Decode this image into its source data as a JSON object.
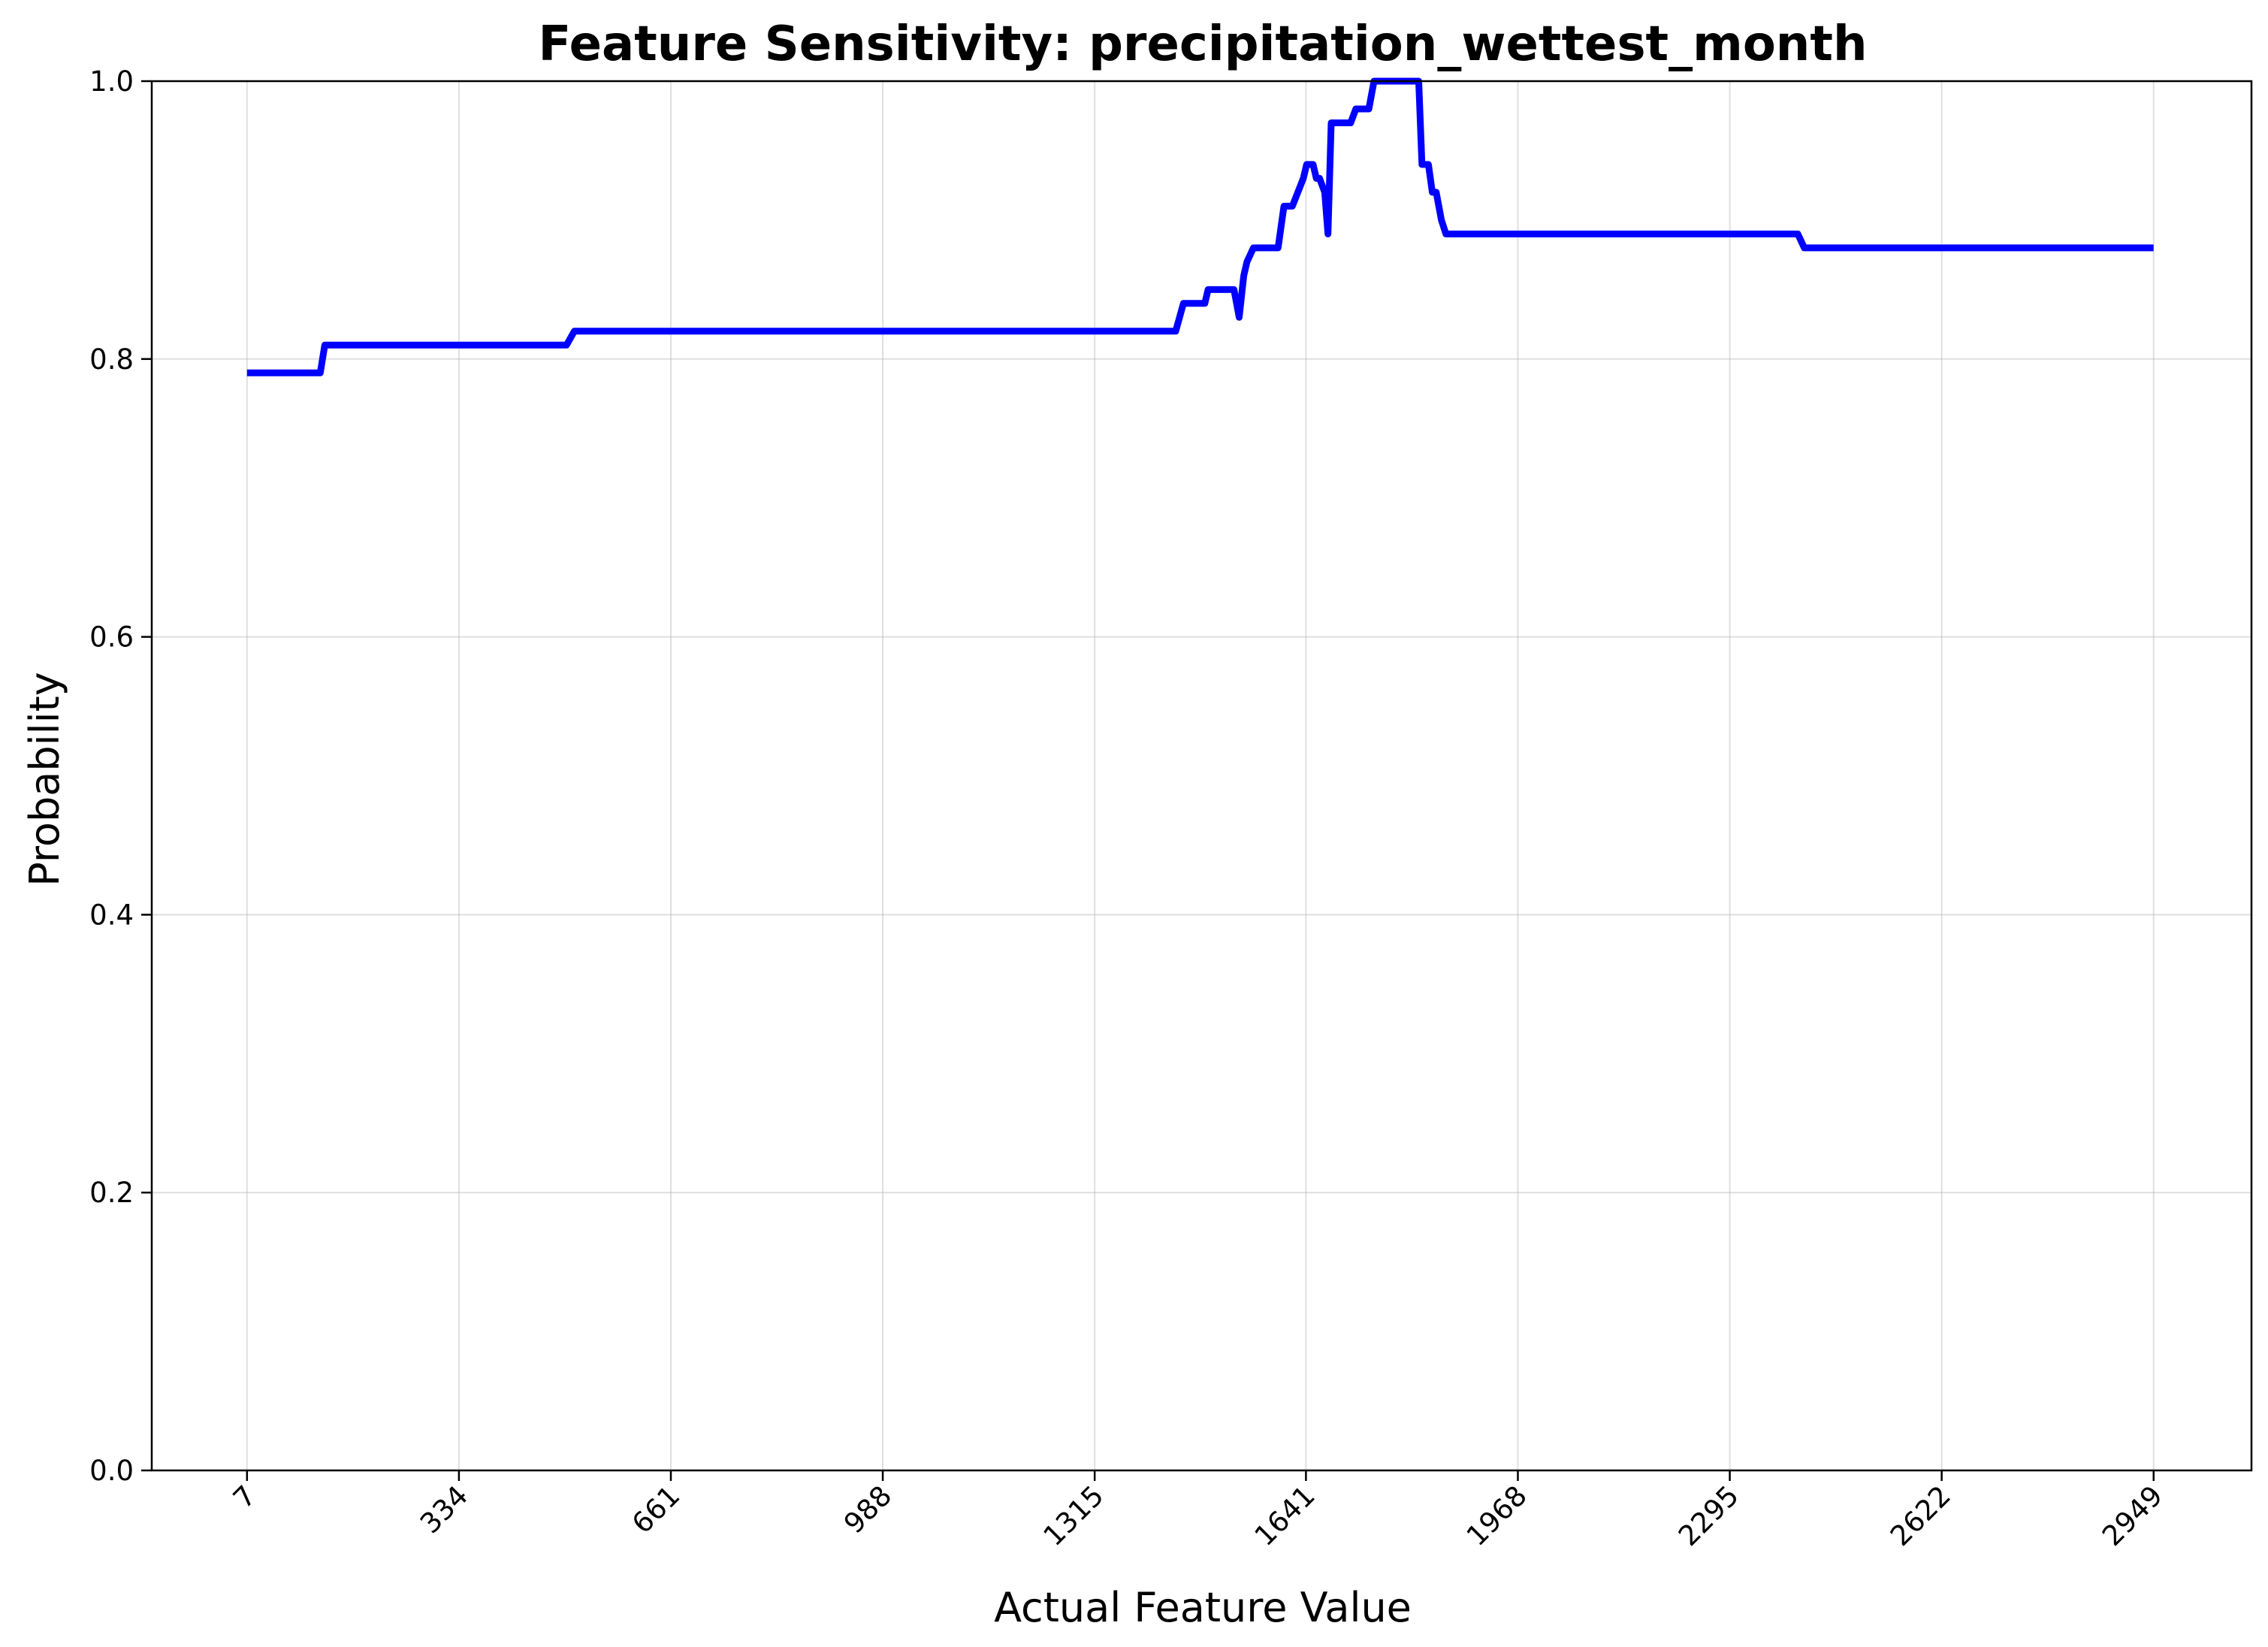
{
  "chart_data": {
    "type": "line",
    "title": "Feature Sensitivity: precipitation_wettest_month",
    "xlabel": "Actual Feature Value",
    "ylabel": "Probability",
    "ylim": [
      0,
      1.0
    ],
    "xlim": [
      -140,
      3100
    ],
    "grid": true,
    "x_ticks": [
      {
        "value": 7,
        "label": "7"
      },
      {
        "value": 334,
        "label": "334"
      },
      {
        "value": 661,
        "label": "661"
      },
      {
        "value": 988,
        "label": "988"
      },
      {
        "value": 1315,
        "label": "1315"
      },
      {
        "value": 1641,
        "label": "1641"
      },
      {
        "value": 1968,
        "label": "1968"
      },
      {
        "value": 2295,
        "label": "2295"
      },
      {
        "value": 2622,
        "label": "2622"
      },
      {
        "value": 2949,
        "label": "2949"
      }
    ],
    "y_ticks": [
      {
        "value": 0.0,
        "label": "0.0"
      },
      {
        "value": 0.2,
        "label": "0.2"
      },
      {
        "value": 0.4,
        "label": "0.4"
      },
      {
        "value": 0.6,
        "label": "0.6"
      },
      {
        "value": 0.8,
        "label": "0.8"
      },
      {
        "value": 1.0,
        "label": "1.0"
      }
    ],
    "series": [
      {
        "color": "#0000ff",
        "x": [
          7,
          120,
          127,
          500,
          512,
          1440,
          1452,
          1485,
          1490,
          1500,
          1510,
          1530,
          1538,
          1545,
          1550,
          1560,
          1570,
          1598,
          1607,
          1620,
          1637,
          1642,
          1648,
          1652,
          1657,
          1662,
          1670,
          1675,
          1680,
          1710,
          1718,
          1738,
          1746,
          1762,
          1815,
          1820,
          1830,
          1836,
          1842,
          1850,
          1857,
          1870,
          2400,
          2410,
          2949
        ],
        "y": [
          0.79,
          0.79,
          0.81,
          0.81,
          0.82,
          0.82,
          0.84,
          0.84,
          0.85,
          0.85,
          0.85,
          0.85,
          0.83,
          0.86,
          0.87,
          0.88,
          0.88,
          0.88,
          0.91,
          0.91,
          0.93,
          0.94,
          0.94,
          0.94,
          0.93,
          0.93,
          0.92,
          0.89,
          0.97,
          0.97,
          0.98,
          0.98,
          1.0,
          1.0,
          1.0,
          0.94,
          0.94,
          0.92,
          0.92,
          0.9,
          0.89,
          0.89,
          0.89,
          0.88,
          0.88
        ]
      }
    ]
  }
}
